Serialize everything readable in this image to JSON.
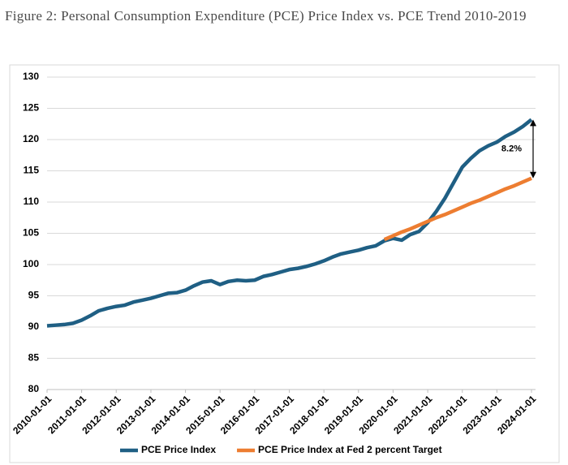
{
  "chart_data": {
    "type": "line",
    "title": "Figure 2: Personal Consumption Expenditure (PCE) Price Index vs. PCE Trend 2010-2019",
    "x": [
      "2010-01-01",
      "2010-04-01",
      "2010-07-01",
      "2010-10-01",
      "2011-01-01",
      "2011-04-01",
      "2011-07-01",
      "2011-10-01",
      "2012-01-01",
      "2012-04-01",
      "2012-07-01",
      "2012-10-01",
      "2013-01-01",
      "2013-04-01",
      "2013-07-01",
      "2013-10-01",
      "2014-01-01",
      "2014-04-01",
      "2014-07-01",
      "2014-10-01",
      "2015-01-01",
      "2015-04-01",
      "2015-07-01",
      "2015-10-01",
      "2016-01-01",
      "2016-04-01",
      "2016-07-01",
      "2016-10-01",
      "2017-01-01",
      "2017-04-01",
      "2017-07-01",
      "2017-10-01",
      "2018-01-01",
      "2018-04-01",
      "2018-07-01",
      "2018-10-01",
      "2019-01-01",
      "2019-04-01",
      "2019-07-01",
      "2019-10-01",
      "2020-01-01",
      "2020-04-01",
      "2020-07-01",
      "2020-10-01",
      "2021-01-01",
      "2021-04-01",
      "2021-07-01",
      "2021-10-01",
      "2022-01-01",
      "2022-04-01",
      "2022-07-01",
      "2022-10-01",
      "2023-01-01",
      "2023-04-01",
      "2023-07-01",
      "2023-10-01",
      "2024-01-01"
    ],
    "series": [
      {
        "name": "PCE Price Index",
        "color": "#1f5f84",
        "values": [
          90.2,
          90.3,
          90.4,
          90.6,
          91.1,
          91.8,
          92.6,
          93.0,
          93.3,
          93.5,
          94.0,
          94.3,
          94.6,
          95.0,
          95.4,
          95.5,
          95.9,
          96.6,
          97.2,
          97.4,
          96.8,
          97.3,
          97.5,
          97.4,
          97.5,
          98.1,
          98.4,
          98.8,
          99.2,
          99.4,
          99.7,
          100.1,
          100.6,
          101.2,
          101.7,
          102.0,
          102.3,
          102.7,
          103.0,
          103.8,
          104.2,
          103.9,
          104.8,
          105.3,
          106.7,
          108.5,
          110.6,
          113.1,
          115.6,
          117.0,
          118.2,
          119.0,
          119.6,
          120.5,
          121.2,
          122.1,
          123.2
        ]
      },
      {
        "name": "PCE Price Index at Fed 2 percent Target",
        "color": "#ed7d31",
        "values": [
          null,
          null,
          null,
          null,
          null,
          null,
          null,
          null,
          null,
          null,
          null,
          null,
          null,
          null,
          null,
          null,
          null,
          null,
          null,
          null,
          null,
          null,
          null,
          null,
          null,
          null,
          null,
          null,
          null,
          null,
          null,
          null,
          null,
          null,
          null,
          null,
          null,
          null,
          null,
          104.0,
          104.6,
          105.2,
          105.7,
          106.3,
          106.9,
          107.5,
          108.0,
          108.6,
          109.2,
          109.8,
          110.3,
          110.9,
          111.5,
          112.1,
          112.6,
          113.2,
          113.8
        ]
      }
    ],
    "xlim": [
      "2010-01-01",
      "2024-01-01"
    ],
    "xticks": [
      "2010-01-01",
      "2011-01-01",
      "2012-01-01",
      "2013-01-01",
      "2014-01-01",
      "2015-01-01",
      "2016-01-01",
      "2017-01-01",
      "2018-01-01",
      "2019-01-01",
      "2020-01-01",
      "2021-01-01",
      "2022-01-01",
      "2023-01-01",
      "2024-01-01"
    ],
    "ylim": [
      80,
      130
    ],
    "yticks": [
      80,
      85,
      90,
      95,
      100,
      105,
      110,
      115,
      120,
      125,
      130
    ],
    "grid": true,
    "legend": "bottom",
    "annotation": "8.2%"
  }
}
